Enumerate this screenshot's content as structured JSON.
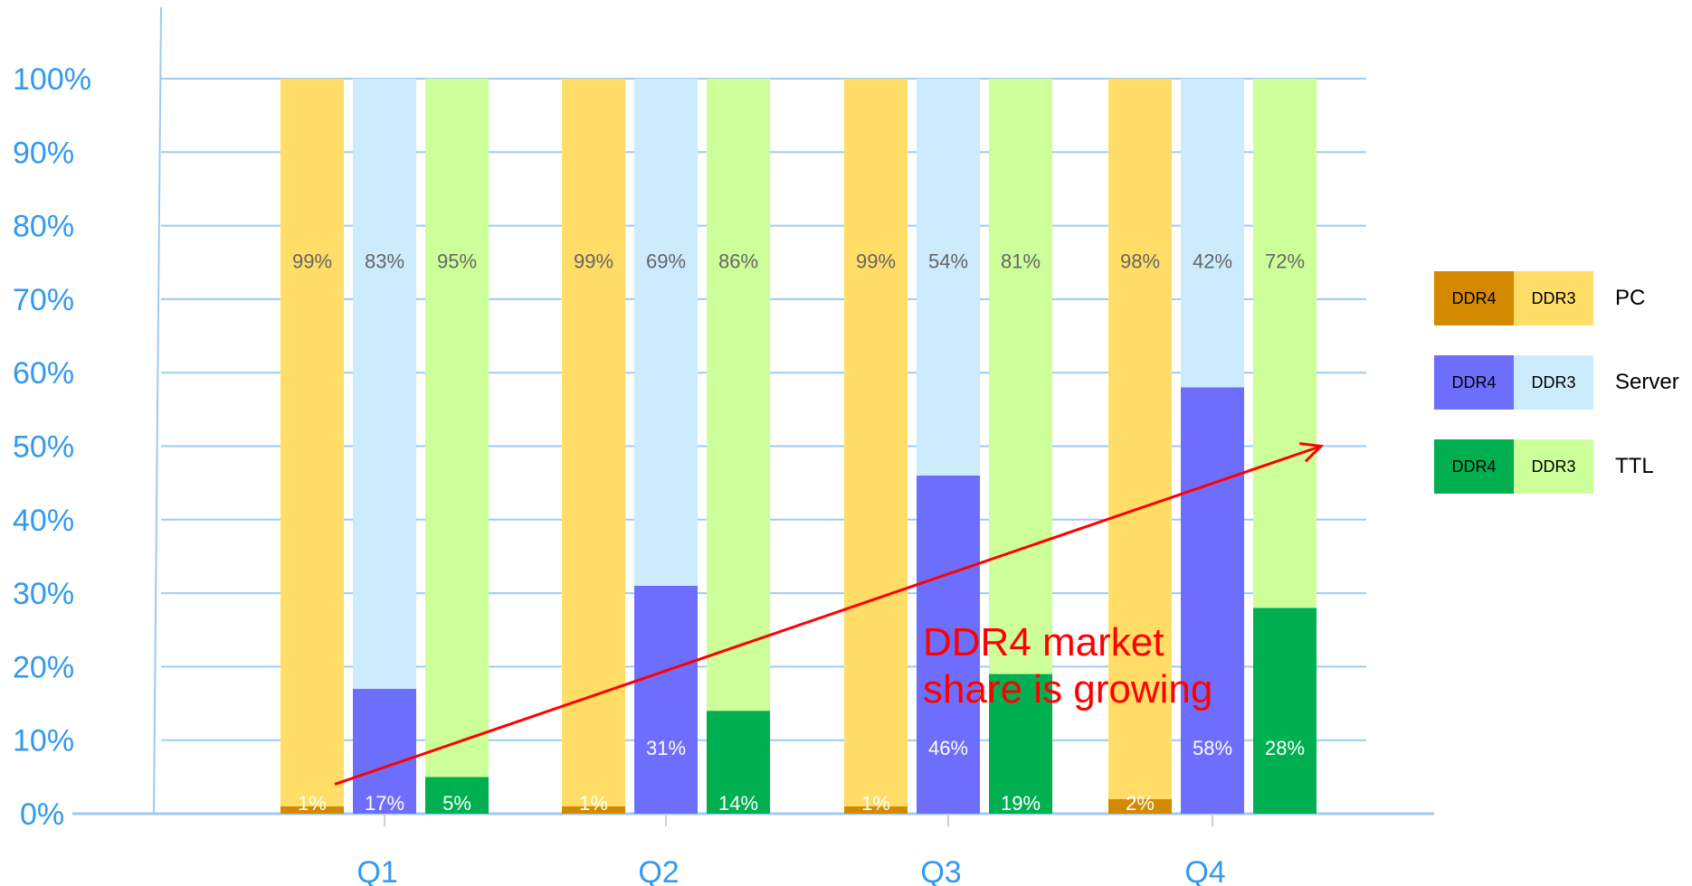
{
  "chart_data": {
    "type": "bar",
    "title": "",
    "categories": [
      "Q1",
      "Q2",
      "Q3",
      "Q4"
    ],
    "ylim": [
      0,
      100
    ],
    "yticks": [
      "0%",
      "10%",
      "20%",
      "30%",
      "40%",
      "50%",
      "60%",
      "70%",
      "80%",
      "90%",
      "100%"
    ],
    "grid": true,
    "legend_position": "right",
    "groups": [
      {
        "name": "PC",
        "series": [
          {
            "name": "DDR4",
            "color": "#d48a00",
            "values": [
              1,
              1,
              1,
              2
            ],
            "labels": [
              "1%",
              "1%",
              "1%",
              "2%"
            ]
          },
          {
            "name": "DDR3",
            "color": "#ffdd66",
            "values": [
              99,
              99,
              99,
              98
            ],
            "labels": [
              "99%",
              "99%",
              "99%",
              "98%"
            ]
          }
        ]
      },
      {
        "name": "Server",
        "series": [
          {
            "name": "DDR4",
            "color": "#6e6efc",
            "values": [
              17,
              31,
              46,
              58
            ],
            "labels": [
              "17%",
              "31%",
              "46%",
              "58%"
            ]
          },
          {
            "name": "DDR3",
            "color": "#ccebfc",
            "values": [
              83,
              69,
              54,
              42
            ],
            "labels": [
              "83%",
              "69%",
              "54%",
              "42%"
            ]
          }
        ]
      },
      {
        "name": "TTL",
        "series": [
          {
            "name": "DDR4",
            "color": "#00b050",
            "values": [
              5,
              14,
              19,
              28
            ],
            "labels": [
              "5%",
              "14%",
              "19%",
              "28%"
            ]
          },
          {
            "name": "DDR3",
            "color": "#ccff99",
            "values": [
              95,
              86,
              81,
              72
            ],
            "labels": [
              "95%",
              "86%",
              "81%",
              "72%"
            ]
          }
        ]
      }
    ],
    "annotation": {
      "text_line1": "DDR4 market",
      "text_line2": "share is growing",
      "arrow_from": {
        "category": "Q1",
        "value": 4
      },
      "arrow_to": {
        "category": "Q4",
        "value": 50
      },
      "color": "#ff0000"
    },
    "colors": {
      "axis": "#9fcbf0",
      "tick_label": "#3399ee",
      "inner_label": "#666666"
    }
  },
  "legend": [
    {
      "ddr4_label": "DDR4",
      "ddr3_label": "DDR3",
      "name": "PC",
      "ddr4_color": "#d48a00",
      "ddr3_color": "#ffdd66"
    },
    {
      "ddr4_label": "DDR4",
      "ddr3_label": "DDR3",
      "name": "Server",
      "ddr4_color": "#6e6efc",
      "ddr3_color": "#ccebfc"
    },
    {
      "ddr4_label": "DDR4",
      "ddr3_label": "DDR3",
      "name": "TTL",
      "ddr4_color": "#00b050",
      "ddr3_color": "#ccff99"
    }
  ]
}
